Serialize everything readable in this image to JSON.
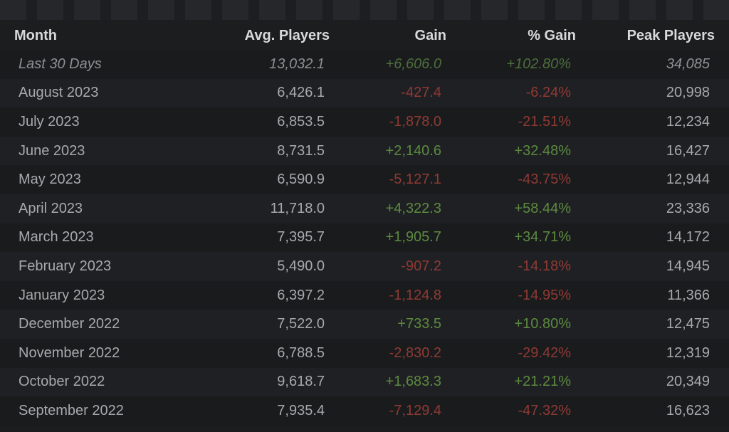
{
  "headers": {
    "month": "Month",
    "avg": "Avg. Players",
    "gain": "Gain",
    "pct": "% Gain",
    "peak": "Peak Players"
  },
  "rows": [
    {
      "month": "Last 30 Days",
      "avg": "13,032.1",
      "gain": "+6,606.0",
      "pct": "+102.80%",
      "peak": "34,085",
      "trend": "pos"
    },
    {
      "month": "August 2023",
      "avg": "6,426.1",
      "gain": "-427.4",
      "pct": "-6.24%",
      "peak": "20,998",
      "trend": "neg"
    },
    {
      "month": "July 2023",
      "avg": "6,853.5",
      "gain": "-1,878.0",
      "pct": "-21.51%",
      "peak": "12,234",
      "trend": "neg"
    },
    {
      "month": "June 2023",
      "avg": "8,731.5",
      "gain": "+2,140.6",
      "pct": "+32.48%",
      "peak": "16,427",
      "trend": "pos"
    },
    {
      "month": "May 2023",
      "avg": "6,590.9",
      "gain": "-5,127.1",
      "pct": "-43.75%",
      "peak": "12,944",
      "trend": "neg"
    },
    {
      "month": "April 2023",
      "avg": "11,718.0",
      "gain": "+4,322.3",
      "pct": "+58.44%",
      "peak": "23,336",
      "trend": "pos"
    },
    {
      "month": "March 2023",
      "avg": "7,395.7",
      "gain": "+1,905.7",
      "pct": "+34.71%",
      "peak": "14,172",
      "trend": "pos"
    },
    {
      "month": "February 2023",
      "avg": "5,490.0",
      "gain": "-907.2",
      "pct": "-14.18%",
      "peak": "14,945",
      "trend": "neg"
    },
    {
      "month": "January 2023",
      "avg": "6,397.2",
      "gain": "-1,124.8",
      "pct": "-14.95%",
      "peak": "11,366",
      "trend": "neg"
    },
    {
      "month": "December 2022",
      "avg": "7,522.0",
      "gain": "+733.5",
      "pct": "+10.80%",
      "peak": "12,475",
      "trend": "pos"
    },
    {
      "month": "November 2022",
      "avg": "6,788.5",
      "gain": "-2,830.2",
      "pct": "-29.42%",
      "peak": "12,319",
      "trend": "neg"
    },
    {
      "month": "October 2022",
      "avg": "9,618.7",
      "gain": "+1,683.3",
      "pct": "+21.21%",
      "peak": "20,349",
      "trend": "pos"
    },
    {
      "month": "September 2022",
      "avg": "7,935.4",
      "gain": "-7,129.4",
      "pct": "-47.32%",
      "peak": "16,623",
      "trend": "neg"
    }
  ]
}
